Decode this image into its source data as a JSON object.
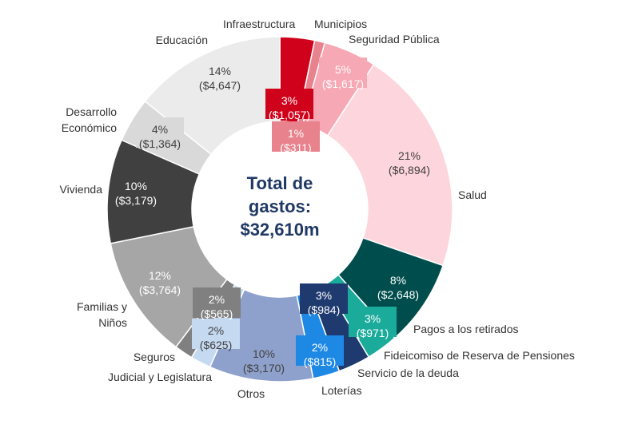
{
  "chart_data": {
    "type": "pie",
    "donut": true,
    "center_label": [
      "Total de",
      "gastos:",
      "$32,610m"
    ],
    "slices": [
      {
        "label": "Infraestructura",
        "value": 1057,
        "pct": "3%",
        "amount": "($1,057)",
        "color": "#d0021b",
        "text_color": "#ffffff"
      },
      {
        "label": "Municipios",
        "value": 311,
        "pct": "1%",
        "amount": "($311)",
        "color": "#e8828c",
        "text_color": "#ffffff"
      },
      {
        "label": "Seguridad Pública",
        "value": 1617,
        "pct": "5%",
        "amount": "($1,617)",
        "color": "#f7a8b5",
        "text_color": "#ffffff"
      },
      {
        "label": "Salud",
        "value": 6894,
        "pct": "21%",
        "amount": "($6,894)",
        "color": "#fdd5dc",
        "text_color": "#404040"
      },
      {
        "label": "Pagos a los retirados",
        "value": 2648,
        "pct": "8%",
        "amount": "($2,648)",
        "color": "#004d4d",
        "text_color": "#ffffff"
      },
      {
        "label": "Fideicomiso de Reserva de Pensiones",
        "value": 971,
        "pct": "3%",
        "amount": "($971)",
        "color": "#1aab9b",
        "text_color": "#ffffff"
      },
      {
        "label": "Servicio de la deuda",
        "value": 984,
        "pct": "3%",
        "amount": "($984)",
        "color": "#1f3a6e",
        "text_color": "#ffffff"
      },
      {
        "label": "Loterías",
        "value": 815,
        "pct": "2%",
        "amount": "($815)",
        "color": "#1e88e5",
        "text_color": "#ffffff"
      },
      {
        "label": "Otros",
        "value": 3170,
        "pct": "10%",
        "amount": "($3,170)",
        "color": "#8ea1cc",
        "text_color": "#404040"
      },
      {
        "label": "Judicial y Legislatura",
        "value": 625,
        "pct": "2%",
        "amount": "($625)",
        "color": "#c5d9f1",
        "text_color": "#404040"
      },
      {
        "label": "Seguros",
        "value": 565,
        "pct": "2%",
        "amount": "($565)",
        "color": "#808080",
        "text_color": "#ffffff"
      },
      {
        "label": "Familias y Niños",
        "value": 3764,
        "pct": "12%",
        "amount": "($3,764)",
        "color": "#a6a6a6",
        "text_color": "#ffffff"
      },
      {
        "label": "Vivienda",
        "value": 3179,
        "pct": "10%",
        "amount": "($3,179)",
        "color": "#404040",
        "text_color": "#ffffff"
      },
      {
        "label": "Desarrollo Económico",
        "value": 1364,
        "pct": "4%",
        "amount": "($1,364)",
        "color": "#d9d9d9",
        "text_color": "#404040"
      },
      {
        "label": "Educación",
        "value": 4647,
        "pct": "14%",
        "amount": "($4,647)",
        "color": "#ebebeb",
        "text_color": "#404040"
      }
    ]
  }
}
